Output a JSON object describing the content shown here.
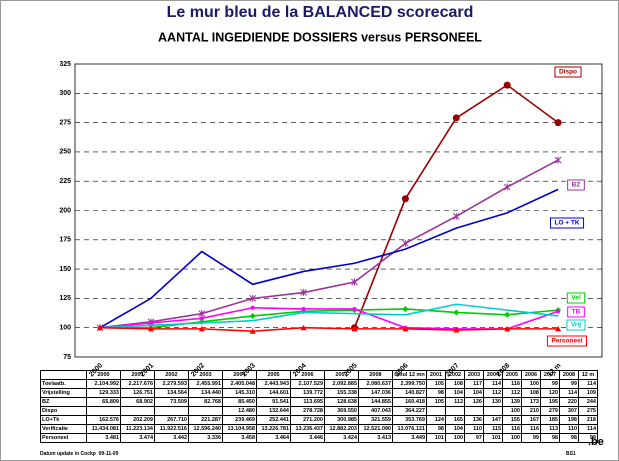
{
  "chart_data": {
    "type": "line",
    "title": "Le mur bleu de la BALANCED scorecard",
    "subtitle": "AANTAL INGEDIENDE DOSSIERS versus PERSONEEL",
    "categories": [
      "2000",
      "2001",
      "2002",
      "2003",
      "2004",
      "2005",
      "2006",
      "2007",
      "2008",
      "12 m"
    ],
    "ylim": [
      75,
      325
    ],
    "yticks": [
      75,
      100,
      125,
      150,
      175,
      200,
      225,
      250,
      275,
      300,
      325
    ],
    "grid": true,
    "series": [
      {
        "name": "Dispo",
        "color": "#990000",
        "marker": "circle",
        "values": [
          null,
          null,
          null,
          null,
          null,
          100,
          210,
          279,
          307,
          275
        ]
      },
      {
        "name": "BZ",
        "color": "#993399",
        "marker": "cross",
        "values": [
          100,
          105,
          112,
          125,
          130,
          139,
          172,
          195,
          220,
          243
        ]
      },
      {
        "name": "LO + TK",
        "color": "#0000cc",
        "marker": "none",
        "values": [
          100,
          125,
          165,
          137,
          148,
          155,
          167,
          185,
          198,
          218
        ]
      },
      {
        "name": "Vel",
        "color": "#00cc00",
        "marker": "diamond",
        "values": [
          100,
          100,
          105,
          110,
          114,
          115,
          116,
          113,
          111,
          115
        ]
      },
      {
        "name": "TB",
        "color": "#ff00ff",
        "marker": "dot",
        "values": [
          100,
          104,
          108,
          117,
          116,
          116,
          100,
          99,
          99,
          114
        ]
      },
      {
        "name": "Vrij",
        "color": "#00cccc",
        "marker": "none",
        "values": [
          100,
          102,
          104,
          106,
          113,
          112,
          111,
          120,
          115,
          110
        ]
      },
      {
        "name": "Personeel",
        "color": "#ff0000",
        "marker": "triangle",
        "values": [
          100,
          99,
          99,
          97,
          100,
          99,
          99,
          98,
          99,
          99
        ]
      }
    ]
  },
  "table": {
    "header": [
      "2000",
      "2001",
      "2002",
      "2003",
      "2004",
      "2005",
      "2006",
      "2007",
      "2008",
      "umul 12 mn",
      "2001",
      "2002",
      "2003",
      "2004",
      "2005",
      "2006",
      "2007",
      "2008",
      "12 m"
    ],
    "rows": [
      [
        "Toelaatb.",
        "2.104.992",
        "2.217.676",
        "2.279.593",
        "2.455.991",
        "2.405.048",
        "2.443.943",
        "2.107.529",
        "2.092.885",
        "2.080.637",
        "2.399.750",
        "105",
        "108",
        "117",
        "114",
        "116",
        "100",
        "99",
        "99",
        "114"
      ],
      [
        "Vrijstelling",
        "129.333",
        "126.751",
        "134.564",
        "134.440",
        "145.310",
        "144.601",
        "139.772",
        "155.338",
        "147.036",
        "140.827",
        "98",
        "104",
        "104",
        "112",
        "112",
        "108",
        "120",
        "114",
        "109"
      ],
      [
        "BZ",
        "65.809",
        "68.902",
        "73.509",
        "82.768",
        "85.450",
        "91.541",
        "113.695",
        "128.638",
        "144.855",
        "160.418",
        "105",
        "112",
        "126",
        "130",
        "139",
        "173",
        "195",
        "220",
        "244"
      ],
      [
        "Dispo",
        null,
        null,
        null,
        null,
        "12.480",
        "132.644",
        "278.728",
        "369.550",
        "407.043",
        "364.227",
        null,
        null,
        null,
        null,
        "100",
        "210",
        "279",
        "307",
        "275"
      ],
      [
        "LO+Tk",
        "162.576",
        "202.209",
        "267.710",
        "221.287",
        "239.469",
        "252.441",
        "271.200",
        "300.985",
        "321.559",
        "353.769",
        "124",
        "165",
        "136",
        "147",
        "155",
        "167",
        "185",
        "198",
        "218"
      ],
      [
        "Verificatie",
        "11.434.081",
        "11.223.134",
        "11.922.516",
        "12.596.240",
        "13.104.958",
        "13.226.781",
        "13.236.437",
        "12.882.203",
        "12.521.090",
        "13.076.121",
        "98",
        "104",
        "110",
        "115",
        "116",
        "116",
        "113",
        "110",
        "114"
      ],
      [
        "Personeel",
        "3.481",
        "3.474",
        "3.442",
        "3.336",
        "3.458",
        "3.464",
        "3.446",
        "3.424",
        "3.413",
        "3.449",
        "101",
        "100",
        "97",
        "101",
        "100",
        "99",
        "98",
        "98",
        "99"
      ]
    ]
  },
  "footer": {
    "update": "Datum update in Cockp",
    "date": "09-11-09",
    "code": "BS1",
    "logo": ".be"
  }
}
